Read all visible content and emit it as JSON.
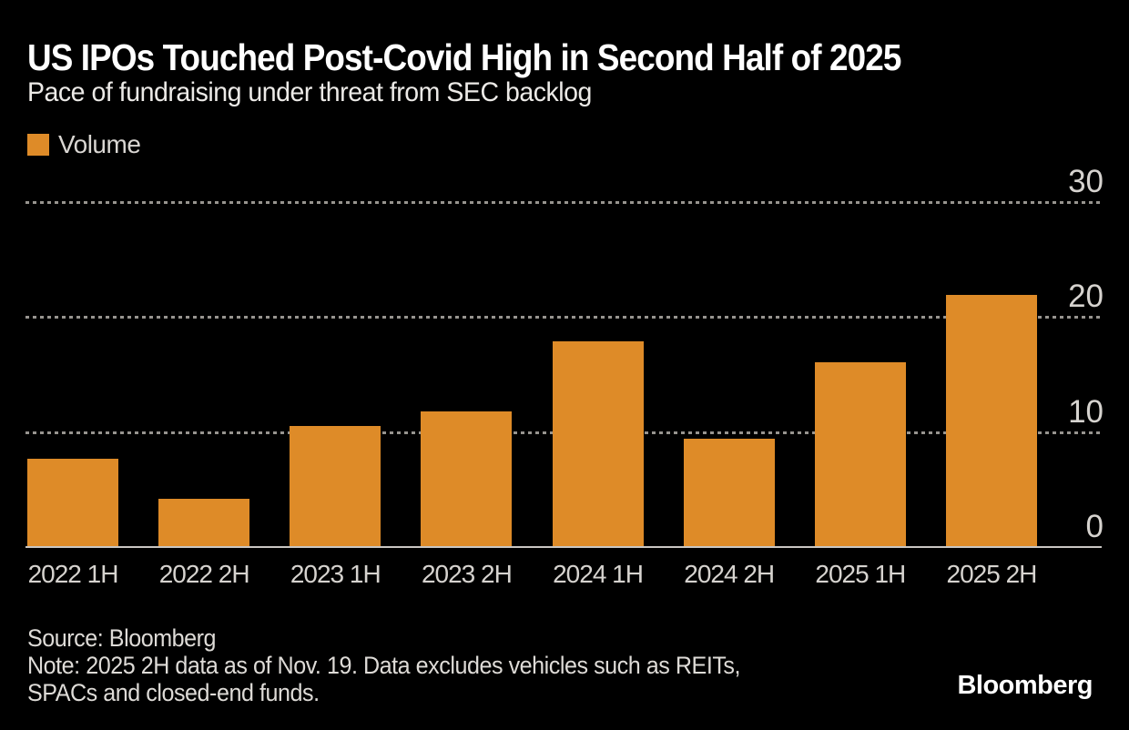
{
  "header": {
    "title": "US IPOs Touched Post-Covid High in Second Half of 2025",
    "subtitle": "Pace of fundraising under threat from SEC backlog"
  },
  "legend": {
    "label": "Volume",
    "swatch_color": "#DE8B28"
  },
  "chart_data": {
    "type": "bar",
    "title": "US IPOs Touched Post-Covid High in Second Half of 2025",
    "subtitle": "Pace of fundraising under threat from SEC backlog",
    "series_name": "Volume",
    "categories": [
      "2022 1H",
      "2022 2H",
      "2023 1H",
      "2023 2H",
      "2024 1H",
      "2024 2H",
      "2025 1H",
      "2025 2H"
    ],
    "values": [
      7.7,
      4.2,
      10.5,
      11.8,
      17.9,
      9.4,
      16.1,
      21.9
    ],
    "xlabel": "",
    "ylabel": "",
    "ylim": [
      0,
      30
    ],
    "yticks": [
      0,
      10,
      20,
      30
    ],
    "grid": "horizontal-dashed",
    "legend_position": "top-left",
    "bar_color": "#DE8B28",
    "background_color": "#000000",
    "axis_text_color": "#D6D3CF"
  },
  "footer": {
    "source": "Source: Bloomberg",
    "note_lines": [
      "Note: 2025 2H data as of Nov. 19. Data excludes vehicles such as REITs,",
      "SPACs and closed-end funds."
    ],
    "logo": "Bloomberg"
  }
}
